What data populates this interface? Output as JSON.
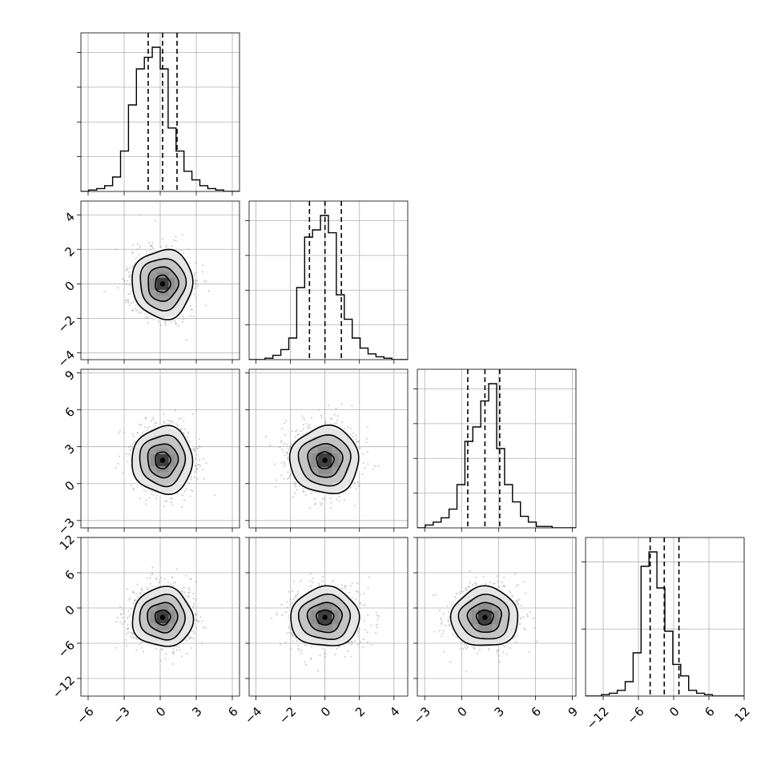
{
  "chart_data": {
    "type": "corner",
    "title": "",
    "n_params": 4,
    "grid": true,
    "quantiles": [
      0.16,
      0.5,
      0.84
    ],
    "colors": {
      "line": "#000000",
      "scatter": "#9a9a9a",
      "density": [
        "#e6e6e6",
        "#c4c4c4",
        "#9c9c9c",
        "#727272",
        "#4a4a4a"
      ],
      "grid": "#b0b0b0"
    },
    "parameters": [
      {
        "name": "",
        "range": [
          -6.6,
          6.6
        ],
        "ticks": [
          -6,
          -3,
          0,
          3,
          6
        ],
        "tick_labels": [
          "−6",
          "−3",
          "0",
          "3",
          "6"
        ],
        "mean": 0.2,
        "sigma": 1.2,
        "quantile_values": [
          -1.0,
          0.2,
          1.4
        ],
        "hist_edges_start": -6.6,
        "hist_bin_width": 0.66,
        "hist_counts": [
          0,
          1,
          2,
          4,
          10,
          28,
          60,
          85,
          93,
          100,
          85,
          44,
          28,
          14,
          8,
          4,
          2,
          1,
          0,
          0
        ]
      },
      {
        "name": "",
        "range": [
          -4.4,
          4.8
        ],
        "ticks": [
          -4,
          -2,
          0,
          2,
          4
        ],
        "tick_labels": [
          "−4",
          "−2",
          "0",
          "2",
          "4"
        ],
        "mean": 0.0,
        "sigma": 0.95,
        "quantile_values": [
          -0.9,
          0.0,
          0.95
        ],
        "hist_edges_start": -4.4,
        "hist_bin_width": 0.46,
        "hist_counts": [
          0,
          0,
          1,
          3,
          7,
          15,
          50,
          85,
          90,
          100,
          88,
          45,
          28,
          15,
          8,
          4,
          2,
          1,
          0,
          0
        ]
      },
      {
        "name": "",
        "range": [
          -3.6,
          9.3
        ],
        "ticks": [
          -3,
          0,
          3,
          6,
          9
        ],
        "tick_labels": [
          "−3",
          "0",
          "3",
          "6",
          "9"
        ],
        "mean": 1.9,
        "sigma": 1.3,
        "quantile_values": [
          0.5,
          1.9,
          3.1
        ],
        "hist_edges_start": -3.6,
        "hist_bin_width": 0.645,
        "hist_counts": [
          0,
          2,
          4,
          7,
          13,
          30,
          60,
          70,
          88,
          100,
          55,
          30,
          18,
          8,
          4,
          1,
          1,
          0,
          0,
          0
        ]
      },
      {
        "name": "",
        "range": [
          -15.0,
          12.0
        ],
        "ticks": [
          -12,
          -6,
          0,
          6,
          12
        ],
        "y_ticks": [
          -12,
          -6,
          0,
          6,
          12
        ],
        "tick_labels": [
          "−12",
          "−6",
          "0",
          "6",
          "12"
        ],
        "mean": -1.6,
        "sigma": 2.4,
        "quantile_values": [
          -4.0,
          -1.6,
          0.9
        ],
        "hist_edges_start": -15.0,
        "hist_bin_width": 1.35,
        "hist_counts": [
          0,
          0,
          1,
          2,
          4,
          10,
          30,
          90,
          100,
          75,
          45,
          22,
          14,
          4,
          2,
          1,
          0,
          0,
          0,
          0
        ]
      }
    ],
    "pairs": [
      {
        "row": 1,
        "col": 0,
        "center": [
          0.2,
          0.0
        ],
        "sigma": [
          1.2,
          0.95
        ]
      },
      {
        "row": 2,
        "col": 0,
        "center": [
          0.2,
          1.9
        ],
        "sigma": [
          1.2,
          1.3
        ]
      },
      {
        "row": 2,
        "col": 1,
        "center": [
          0.0,
          1.9
        ],
        "sigma": [
          0.95,
          1.3
        ]
      },
      {
        "row": 3,
        "col": 0,
        "center": [
          0.2,
          -1.6
        ],
        "sigma": [
          1.2,
          2.4
        ]
      },
      {
        "row": 3,
        "col": 1,
        "center": [
          0.0,
          -1.6
        ],
        "sigma": [
          0.95,
          2.4
        ]
      },
      {
        "row": 3,
        "col": 2,
        "center": [
          1.9,
          -1.6
        ],
        "sigma": [
          1.3,
          2.4
        ]
      }
    ],
    "contour_levels_sigma": [
      0.5,
      1.0,
      1.5,
      2.0
    ]
  }
}
